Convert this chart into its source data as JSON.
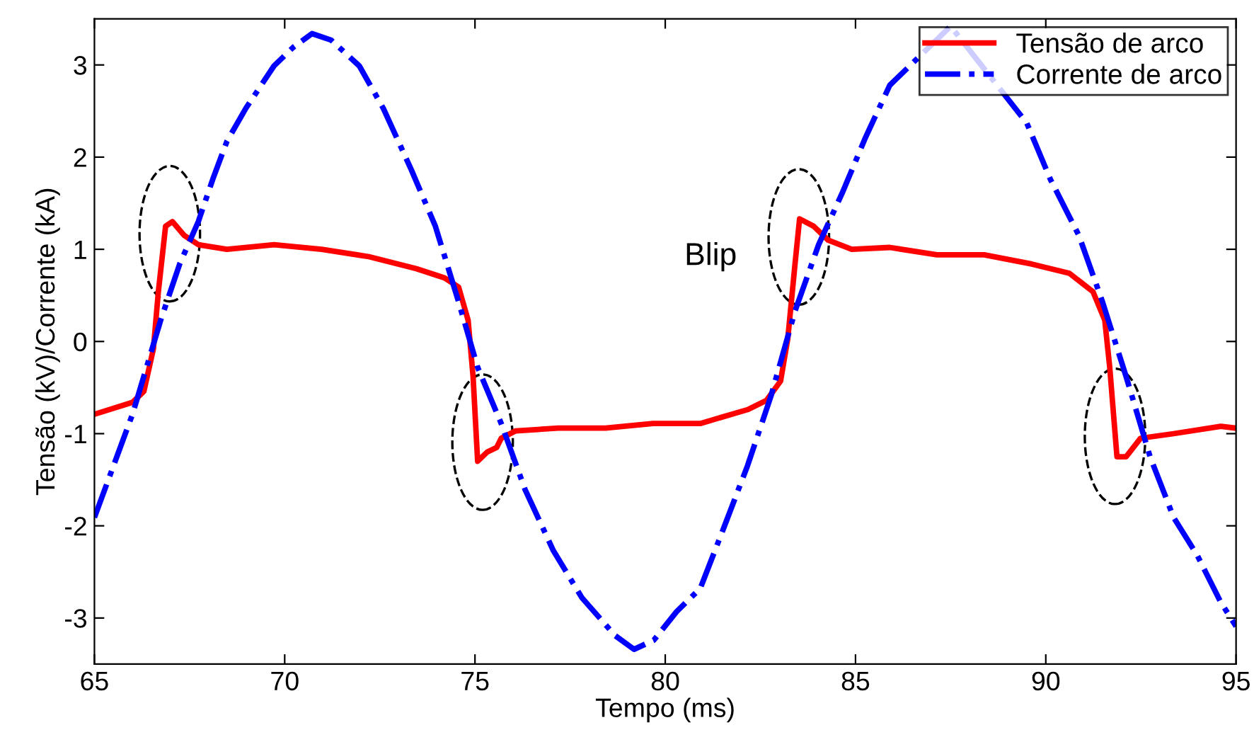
{
  "chart_data": {
    "type": "line",
    "xlabel": "Tempo (ms)",
    "ylabel": "Tensão (kV)/Corrente (kA)",
    "xlim": [
      65,
      95
    ],
    "xticks": [
      65,
      70,
      75,
      80,
      85,
      90,
      95
    ],
    "ylim": [
      -3.5,
      3.5
    ],
    "yticks": [
      -3,
      -2,
      -1,
      0,
      1,
      2,
      3
    ],
    "grid": false,
    "legend": "top right",
    "annotations": [
      {
        "text": "Blip",
        "x": 83.5,
        "y": 1.3
      }
    ],
    "series": [
      {
        "name": "Tensão de arco",
        "color": "#ff0000",
        "line_style": "solid",
        "x": [
          65.0,
          66.0,
          66.3,
          66.55,
          66.68,
          66.87,
          67.05,
          67.36,
          67.73,
          68.48,
          69.72,
          70.97,
          72.21,
          73.46,
          74.2,
          74.57,
          74.82,
          74.95,
          75.07,
          75.32,
          75.57,
          75.69,
          76.07,
          77.19,
          78.43,
          79.68,
          80.92,
          82.16,
          82.66,
          83.03,
          83.22,
          83.41,
          83.53,
          83.9,
          84.28,
          84.9,
          85.9,
          87.14,
          88.38,
          89.63,
          90.62,
          91.24,
          91.55,
          91.68,
          91.87,
          92.11,
          92.49,
          93.36,
          94.6,
          95.0
        ],
        "values": [
          -0.79,
          -0.66,
          -0.54,
          -0.08,
          0.54,
          1.25,
          1.3,
          1.15,
          1.05,
          1.0,
          1.05,
          1.0,
          0.92,
          0.79,
          0.69,
          0.59,
          0.23,
          -0.38,
          -1.3,
          -1.2,
          -1.15,
          -1.05,
          -0.97,
          -0.94,
          -0.94,
          -0.89,
          -0.89,
          -0.74,
          -0.64,
          -0.43,
          0.03,
          0.84,
          1.33,
          1.25,
          1.1,
          1.0,
          1.02,
          0.94,
          0.94,
          0.84,
          0.74,
          0.54,
          0.23,
          -0.28,
          -1.25,
          -1.25,
          -1.05,
          -1.0,
          -0.92,
          -0.94
        ]
      },
      {
        "name": "Corrente de arco",
        "color": "#0000ff",
        "line_style": "dashdot",
        "x": [
          65.0,
          65.5,
          66.0,
          66.37,
          66.74,
          67.24,
          67.73,
          68.11,
          68.48,
          68.98,
          69.72,
          70.22,
          70.72,
          71.22,
          71.96,
          72.59,
          73.33,
          73.96,
          74.57,
          75.07,
          75.69,
          76.32,
          77.06,
          77.81,
          78.68,
          79.18,
          79.7,
          80.3,
          80.92,
          81.54,
          82.16,
          82.78,
          83.41,
          84.03,
          84.65,
          85.27,
          85.9,
          87.5,
          89.5,
          90.12,
          90.87,
          91.49,
          92.11,
          92.74,
          93.36,
          93.98,
          94.6,
          95.0
        ],
        "values": [
          -1.91,
          -1.35,
          -0.79,
          -0.28,
          0.23,
          0.84,
          1.3,
          1.76,
          2.17,
          2.53,
          2.99,
          3.19,
          3.34,
          3.27,
          2.99,
          2.53,
          1.86,
          1.25,
          0.43,
          -0.28,
          -0.89,
          -1.61,
          -2.27,
          -2.78,
          -3.19,
          -3.34,
          -3.24,
          -2.93,
          -2.68,
          -2.02,
          -1.35,
          -0.59,
          0.33,
          1.05,
          1.61,
          2.22,
          2.78,
          3.42,
          2.37,
          1.76,
          1.15,
          0.43,
          -0.38,
          -1.25,
          -1.91,
          -2.32,
          -2.83,
          -3.09
        ]
      }
    ]
  }
}
